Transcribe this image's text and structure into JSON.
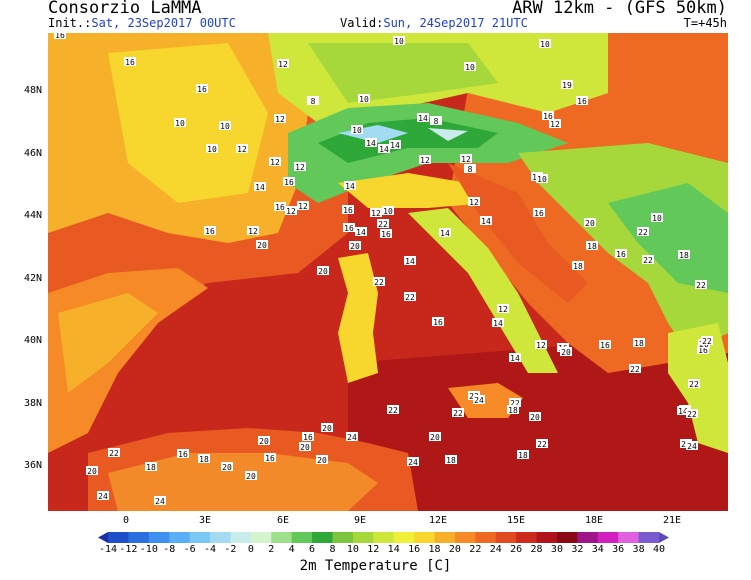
{
  "header": {
    "title": "Consorzio LaMMA",
    "model": "ARW 12km - (GFS 50km)",
    "init_label": "Init.:",
    "init_value": "Sat, 23Sep2017 00UTC",
    "valid_label": "Valid:",
    "valid_value": "Sun, 24Sep2017 21UTC",
    "forecast_step": "T=+45h"
  },
  "map": {
    "variable": "2m Temperature [C]",
    "lat_labels": [
      "48N",
      "46N",
      "44N",
      "42N",
      "40N",
      "38N",
      "36N"
    ],
    "lon_labels": [
      "0",
      "3E",
      "6E",
      "9E",
      "12E",
      "15E",
      "18E",
      "21E"
    ],
    "station_values": [
      "16",
      "16",
      "16",
      "16",
      "16",
      "12",
      "10",
      "10",
      "10",
      "8",
      "10",
      "8",
      "8",
      "16",
      "19",
      "10",
      "14",
      "12",
      "10",
      "10",
      "10",
      "8",
      "10",
      "12",
      "10",
      "12",
      "12",
      "12",
      "14",
      "14",
      "8",
      "12",
      "16",
      "16",
      "12",
      "12",
      "10",
      "8",
      "12",
      "12",
      "14",
      "14",
      "16",
      "20",
      "16",
      "14",
      "12",
      "14",
      "10",
      "16",
      "14",
      "16",
      "12",
      "16",
      "12",
      "20",
      "12",
      "16",
      "22",
      "20",
      "14",
      "22",
      "14",
      "22",
      "16",
      "16",
      "20",
      "22",
      "22",
      "10",
      "18",
      "18",
      "16",
      "18",
      "14",
      "12",
      "12",
      "16",
      "20",
      "14",
      "16",
      "18",
      "22",
      "14",
      "22",
      "16",
      "20",
      "22",
      "22",
      "14",
      "22",
      "24",
      "22",
      "22",
      "20",
      "22",
      "18",
      "18",
      "22",
      "24",
      "22",
      "20",
      "18",
      "24",
      "22",
      "20",
      "24",
      "16",
      "20",
      "20",
      "20",
      "16",
      "20",
      "18",
      "16",
      "18",
      "22",
      "20",
      "24",
      "24",
      "20"
    ]
  },
  "colorbar": {
    "labels": [
      "-14",
      "-12",
      "-10",
      "-8",
      "-6",
      "-4",
      "-2",
      "0",
      "2",
      "4",
      "6",
      "8",
      "10",
      "12",
      "14",
      "16",
      "18",
      "20",
      "22",
      "24",
      "26",
      "28",
      "30",
      "32",
      "34",
      "36",
      "38",
      "40"
    ],
    "colors": [
      "#1a2fa8",
      "#1f4fc8",
      "#2a6fe0",
      "#3d8ff0",
      "#5aaef5",
      "#7cc8f5",
      "#a3dcf2",
      "#c8ecec",
      "#d6f3d0",
      "#9ee08a",
      "#62c85a",
      "#2fa83a",
      "#7cc43c",
      "#a6d83c",
      "#cfe63a",
      "#eef03a",
      "#f7d62e",
      "#f7b02a",
      "#f58a26",
      "#ee6a22",
      "#e04a1e",
      "#cc2a1a",
      "#b0141a",
      "#8a0a14",
      "#a0148a",
      "#d020c0",
      "#e060e0",
      "#7a5ad0",
      "#5a4ab8"
    ]
  }
}
